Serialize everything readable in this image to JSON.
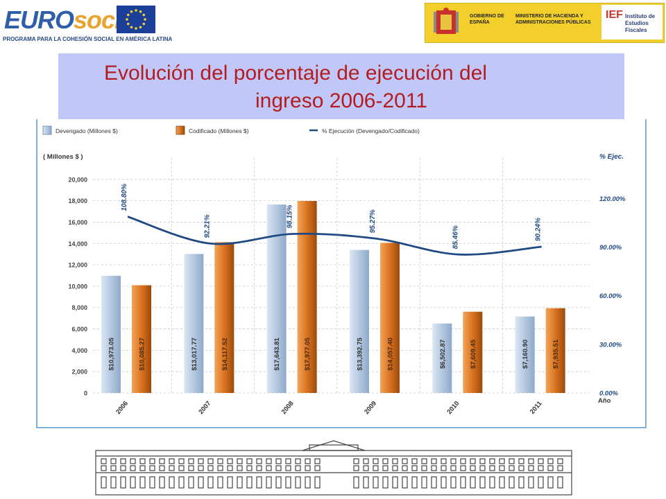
{
  "header": {
    "eurosocial_word_a": "EURO",
    "eurosocial_word_b": "socIAL",
    "eurosocial_tagline": "PROGRAMA PARA LA COHESIÓN SOCIAL EN AMÉRICA LATINA",
    "gov_line1": "GOBIERNO DE ESPAÑA",
    "gov_line2": "MINISTERIO DE HACIENDA Y ADMINISTRACIONES PÚBLICAS",
    "ief_mark": "IEF",
    "ief_text": "Instituto de Estudios Fiscales"
  },
  "title": {
    "line1": "Evolución del porcentaje de ejecución del",
    "line2": "ingreso 2006-2011"
  },
  "chart_data": {
    "type": "bar",
    "categories": [
      "2006",
      "2007",
      "2008",
      "2009",
      "2010",
      "2011"
    ],
    "series": [
      {
        "name": "Devengado (Millones $)",
        "type": "bar",
        "color": "#a9c0da",
        "values": [
          10973.05,
          13017.77,
          17643.81,
          13392.75,
          6502.87,
          7160.9
        ],
        "labels": [
          "$10,973.05",
          "$13,017.77",
          "$17,643.81",
          "$13,392.75",
          "$6,502.87",
          "$7,160.90"
        ]
      },
      {
        "name": "Codificado (Millones $)",
        "type": "bar",
        "color": "#d9731f",
        "values": [
          10085.27,
          14117.52,
          17977.05,
          14057.4,
          7609.45,
          7935.51
        ],
        "labels": [
          "$10,085.27",
          "$14,117.52",
          "$17,977.05",
          "$14,057.40",
          "$7,609.45",
          "$7,935.51"
        ]
      },
      {
        "name": "% Ejecución (Devengado/Codificado)",
        "type": "line",
        "color": "#1f4a84",
        "values": [
          108.8,
          92.21,
          98.15,
          95.27,
          85.46,
          90.24
        ],
        "labels": [
          "108.80%",
          "92.21%",
          "98.15%",
          "95.27%",
          "85.46%",
          "90.24%"
        ]
      }
    ],
    "left_axis": {
      "label": "( Millones $ )",
      "min": 0,
      "max": 22000,
      "ticks": [
        0,
        2000,
        4000,
        6000,
        8000,
        10000,
        12000,
        14000,
        16000,
        18000,
        20000
      ],
      "tick_labels": [
        "0",
        "2,000",
        "4,000",
        "6,000",
        "8,000",
        "10,000",
        "12,000",
        "14,000",
        "16,000",
        "18,000",
        "20,000"
      ]
    },
    "right_axis": {
      "label": "% Ejec.",
      "min": 0,
      "max": 145,
      "ticks": [
        0,
        30,
        60,
        90,
        120
      ],
      "tick_labels": [
        "0.00%",
        "30.00%",
        "60.00%",
        "90.00%",
        "120.00%"
      ]
    },
    "xlabel": "Año",
    "grid": true,
    "legend_position": "top-left"
  }
}
